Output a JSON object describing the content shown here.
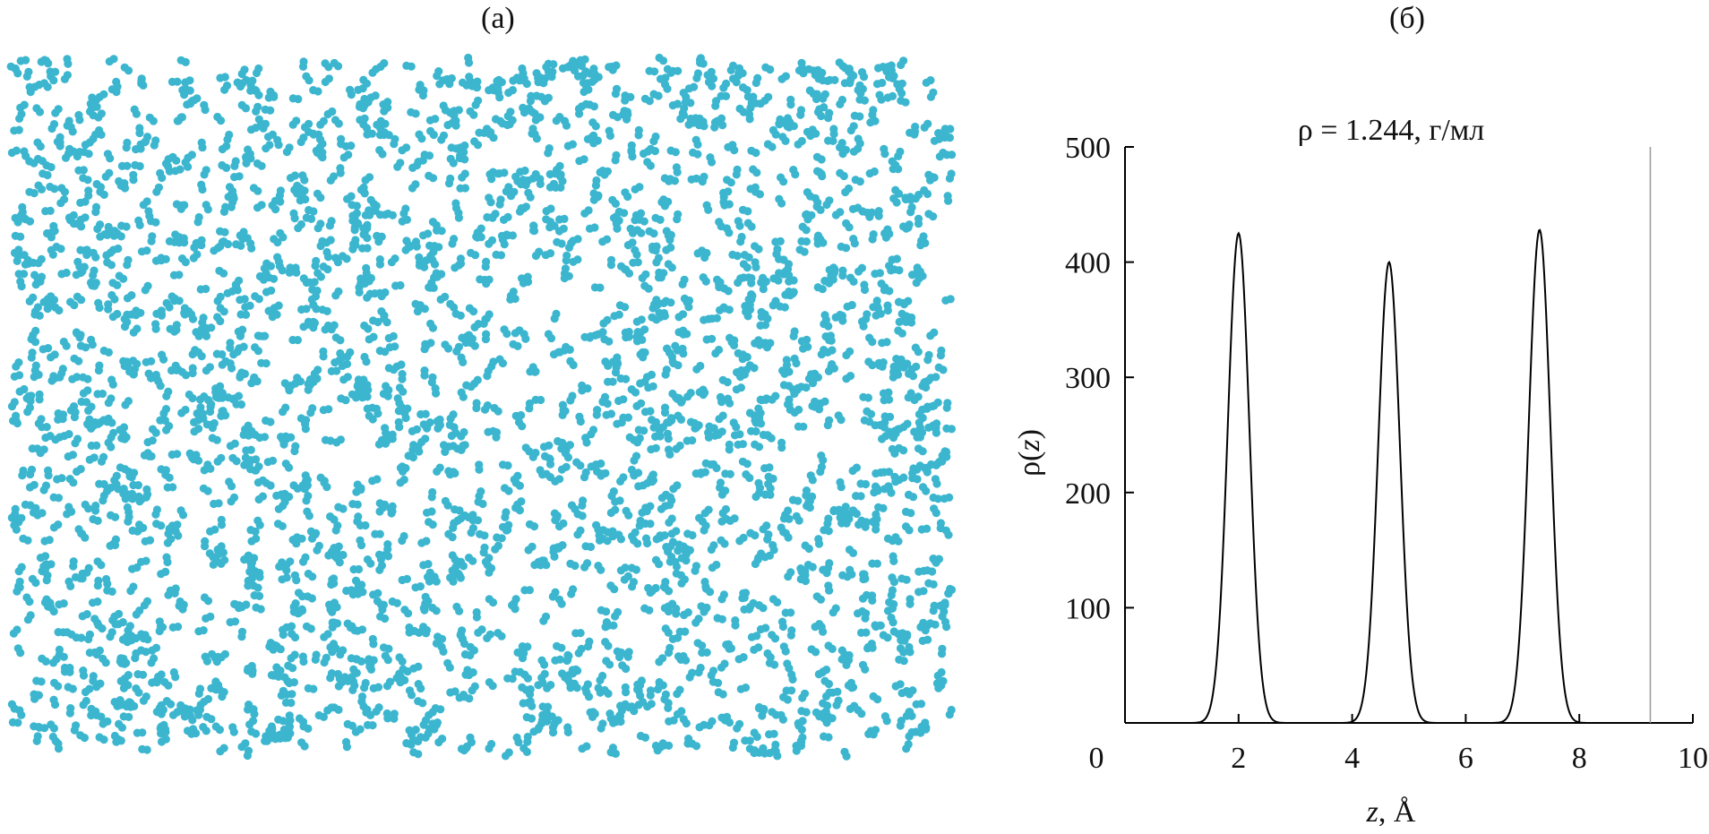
{
  "panels": {
    "a_label": "(а)",
    "b_label": "(б)"
  },
  "snapshot": {
    "particle_color": "#3cb6cf",
    "particle_count": 2400
  },
  "chart_data": {
    "type": "line",
    "title": "ρ = 1.244, г/мл",
    "xlabel": "z, Å",
    "ylabel": "ρ(z)",
    "xlim": [
      0,
      10
    ],
    "ylim": [
      0,
      500
    ],
    "xticks": [
      "0",
      "2",
      "4",
      "6",
      "8",
      "10"
    ],
    "yticks": [
      "100",
      "200",
      "300",
      "400",
      "500"
    ],
    "grid": false,
    "line_color": "#000000",
    "wall_line_x": 9.25,
    "wall_line_color": "#999999",
    "series": [
      {
        "peaks": [
          {
            "center": 2.0,
            "height": 425
          },
          {
            "center": 4.65,
            "height": 400
          },
          {
            "center": 7.3,
            "height": 428
          }
        ],
        "width_sigma": 0.19
      }
    ]
  }
}
